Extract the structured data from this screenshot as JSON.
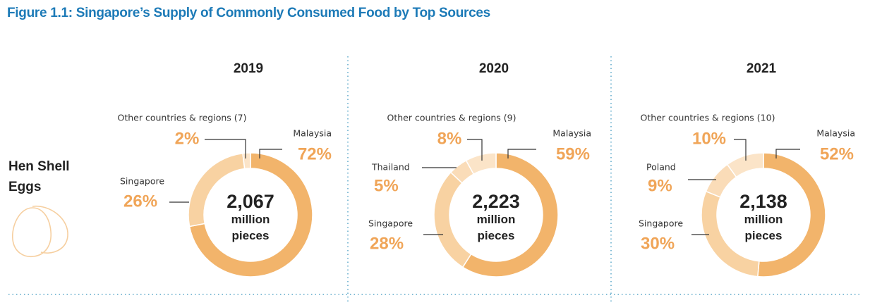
{
  "header": {
    "title": "Figure 1.1: Singapore’s Supply of Commonly Consumed Food by Top Sources"
  },
  "row_label": "Hen Shell Eggs",
  "chart_data": [
    {
      "type": "donut",
      "title": "2019",
      "center_label": "2,067",
      "center_unit": "million pieces",
      "categories": [
        "Malaysia",
        "Singapore",
        "Other countries & regions (7)"
      ],
      "values": [
        72,
        26,
        2
      ],
      "value_labels": [
        "72%",
        "26%",
        "2%"
      ],
      "colors": [
        "#f2b46b",
        "#f8d2a2",
        "#fbe4c8"
      ]
    },
    {
      "type": "donut",
      "title": "2020",
      "center_label": "2,223",
      "center_unit": "million pieces",
      "categories": [
        "Malaysia",
        "Singapore",
        "Thailand",
        "Other countries & regions (9)"
      ],
      "values": [
        59,
        28,
        5,
        8
      ],
      "value_labels": [
        "59%",
        "28%",
        "5%",
        "8%"
      ],
      "colors": [
        "#f2b46b",
        "#f8d2a2",
        "#fadcb8",
        "#fbe4c8"
      ]
    },
    {
      "type": "donut",
      "title": "2021",
      "center_label": "2,138",
      "center_unit": "million pieces",
      "categories": [
        "Malaysia",
        "Singapore",
        "Poland",
        "Other countries & regions (10)"
      ],
      "values": [
        52,
        30,
        9,
        10
      ],
      "value_labels": [
        "52%",
        "30%",
        "9%",
        "10%"
      ],
      "colors": [
        "#f2b46b",
        "#f8d2a2",
        "#fadcb8",
        "#fbe4c8"
      ]
    }
  ]
}
